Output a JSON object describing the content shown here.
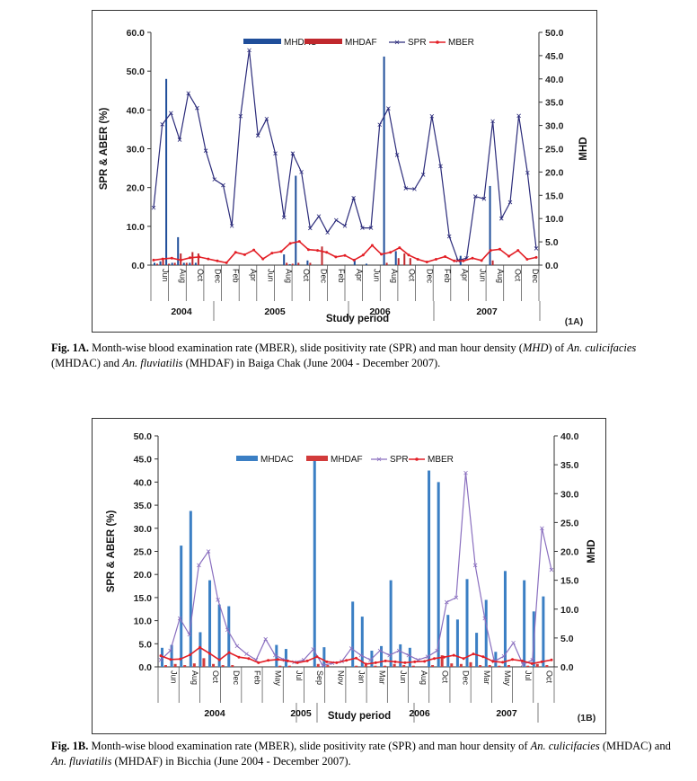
{
  "chart_data": [
    {
      "type": "bar",
      "panel_tag": "(1A)",
      "xlabel": "Study period",
      "ylabel": "SPR & ABER (%)",
      "ylabel_right": "MHD",
      "ylim": [
        0,
        60
      ],
      "ylim_right": [
        0,
        50
      ],
      "y_ticks": [
        "0.0",
        "10.0",
        "20.0",
        "30.0",
        "40.0",
        "50.0",
        "60.0"
      ],
      "y_ticks_right": [
        "0.0",
        "5.0",
        "10.0",
        "15.0",
        "20.0",
        "25.0",
        "30.0",
        "35.0",
        "40.0",
        "45.0",
        "50.0"
      ],
      "month_labels": [
        "Jun",
        "Aug",
        "Oct",
        "Dec",
        "Feb",
        "Apr",
        "Jun",
        "Aug",
        "Oct",
        "Dec",
        "Feb",
        "Apr",
        "Jun",
        "Aug",
        "Oct",
        "Dec",
        "Feb",
        "Apr",
        "Jun",
        "Aug",
        "Oct",
        "Dec"
      ],
      "years": [
        "2004",
        "2005",
        "2006",
        "2007"
      ],
      "legend": [
        "MHDAC",
        "MHDAF",
        "SPR",
        "MBER"
      ],
      "colors": {
        "MHDAC": "#1f4e9a",
        "MHDAF": "#c0282d",
        "SPR": "#2b2b7a",
        "MBER": "#e31f26"
      },
      "series": [
        {
          "name": "MHDAC",
          "axis": "right",
          "values": [
            0.5,
            0.8,
            40,
            0.5,
            6,
            0.5,
            0.5,
            0.5,
            0,
            0,
            0,
            0,
            0,
            0,
            0,
            0,
            0,
            0,
            0,
            0,
            0,
            0,
            2.3,
            0.2,
            19.2,
            0,
            1,
            0,
            0,
            0,
            0,
            0,
            0,
            0,
            1.2,
            0,
            0.3,
            0,
            0,
            44.8,
            0,
            3,
            0,
            0,
            0,
            0,
            0,
            0,
            0,
            0,
            0,
            0,
            2,
            0,
            0,
            0,
            0,
            17,
            0,
            0,
            0,
            0,
            0,
            0,
            0
          ]
        },
        {
          "name": "MHDAF",
          "axis": "right",
          "values": [
            0.3,
            1.2,
            0.3,
            0.5,
            2.5,
            0.5,
            2.8,
            2.5,
            0,
            0,
            0,
            0,
            0,
            0,
            0,
            0,
            0,
            0,
            0,
            0,
            0,
            0,
            0.5,
            0.3,
            0.5,
            0,
            0.5,
            0,
            4,
            0,
            0,
            0,
            0,
            0,
            0,
            0,
            0,
            0,
            0,
            0.5,
            0,
            1.5,
            2.5,
            1.5,
            0,
            0,
            0,
            0,
            0,
            0,
            0,
            0,
            0,
            0,
            0,
            0,
            0,
            1,
            0,
            0,
            0,
            0,
            0,
            0,
            0
          ]
        },
        {
          "name": "SPR",
          "axis": "left",
          "values": [
            14.8,
            36.3,
            39.2,
            32.3,
            44.3,
            40.5,
            29.5,
            22.1,
            20.6,
            10.1,
            38.4,
            55.4,
            33.4,
            37.7,
            28.8,
            12.3,
            28.8,
            24,
            9.5,
            12.6,
            8.4,
            11.6,
            10.1,
            17.3,
            9.6,
            9.6,
            36.2,
            40.4,
            28.4,
            19.8,
            19.6,
            23.3,
            38.4,
            25.5,
            7.4,
            1.2,
            1.8,
            17.7,
            17.1,
            37.1,
            12,
            16.2,
            38.5,
            23.8,
            4.3
          ]
        },
        {
          "name": "MBER",
          "axis": "left",
          "values": [
            1.3,
            1.6,
            1.8,
            1.3,
            1.9,
            2.1,
            1.6,
            1.1,
            0.6,
            3.3,
            2.7,
            3.9,
            1.6,
            3.1,
            3.5,
            5.6,
            6.1,
            4,
            3.8,
            3.3,
            2.1,
            2.5,
            1.3,
            2.6,
            5.1,
            2.8,
            3.3,
            4.5,
            2.6,
            1.5,
            0.8,
            1.5,
            2.2,
            1.1,
            1.1,
            1.8,
            1.2,
            3.8,
            4.1,
            2.3,
            3.8,
            1.5,
            2
          ]
        }
      ]
    },
    {
      "type": "bar",
      "panel_tag": "(1B)",
      "xlabel": "Study period",
      "ylabel": "SPR & ABER (%)",
      "ylabel_right": "MHD",
      "ylim": [
        0,
        50
      ],
      "ylim_right": [
        0,
        40
      ],
      "y_ticks": [
        "0.0",
        "5.0",
        "10.0",
        "15.0",
        "20.0",
        "25.0",
        "30.0",
        "35.0",
        "40.0",
        "45.0",
        "50.0"
      ],
      "y_ticks_right": [
        "0.0",
        "5.0",
        "10.0",
        "15.0",
        "20.0",
        "25.0",
        "30.0",
        "35.0",
        "40.0"
      ],
      "month_labels": [
        "Jun",
        "Aug",
        "Oct",
        "Dec",
        "Feb",
        "May",
        "Jul",
        "Sep",
        "Nov",
        "Jan",
        "Mar",
        "Jun",
        "Aug",
        "Oct",
        "Dec",
        "Mar",
        "May",
        "Jul",
        "Oct"
      ],
      "years": [
        "2004",
        "2005",
        "2006",
        "2007"
      ],
      "legend": [
        "MHDAC",
        "MHDAF",
        "SPR",
        "MBER"
      ],
      "colors": {
        "MHDAC": "#3b7fc4",
        "MHDAF": "#d23b3b",
        "SPR": "#8a6fbf",
        "MBER": "#e31f26"
      },
      "series": [
        {
          "name": "MHDAC",
          "axis": "right",
          "values": [
            3.3,
            3.8,
            21,
            27,
            6,
            15,
            10.8,
            10.5,
            0,
            0,
            0,
            0,
            3.8,
            3.1,
            0,
            0,
            36,
            3.4,
            0,
            0,
            11.3,
            8.7,
            2.8,
            3.6,
            15,
            3.9,
            3.3,
            0,
            34,
            32,
            9,
            8.2,
            15.2,
            5.9,
            11.6,
            2.6,
            16.6,
            0,
            15,
            9.6,
            12.2
          ]
        },
        {
          "name": "MHDAF",
          "axis": "right",
          "values": [
            0.3,
            0.5,
            0.3,
            0.6,
            1.5,
            0.5,
            0.3,
            0.3,
            0,
            0,
            0,
            0,
            0.2,
            0.2,
            0,
            0,
            0.5,
            0.3,
            0,
            0,
            0.2,
            0.3,
            0.2,
            0.2,
            0.5,
            0.3,
            0.2,
            0,
            0.3,
            2,
            0.6,
            0.5,
            0.8,
            0.3,
            0.3,
            0.2,
            0.3,
            0,
            0.2,
            0.5,
            0.3
          ]
        },
        {
          "name": "SPR",
          "axis": "left",
          "values": [
            1.5,
            3.5,
            10.5,
            7,
            22,
            25,
            14.5,
            8,
            4.5,
            2.8,
            1.5,
            6,
            2.5,
            1.5,
            1,
            1.5,
            3.8,
            0.3,
            0.8,
            1.2,
            4,
            2.5,
            1.5,
            3.5,
            2.5,
            3.5,
            2.5,
            1.5,
            2.2,
            3.5,
            14,
            15,
            42,
            22,
            10.5,
            1.2,
            2.3,
            5.2,
            0.5,
            1.5,
            30,
            21
          ]
        },
        {
          "name": "MBER",
          "axis": "left",
          "values": [
            2.4,
            1.6,
            1.7,
            2.6,
            4.2,
            2.9,
            1.5,
            3.1,
            2.1,
            1.8,
            0.9,
            1.4,
            1.6,
            1.3,
            0.9,
            1.3,
            2.2,
            1.1,
            0.9,
            1.4,
            1.9,
            0.6,
            0.9,
            1.3,
            1.1,
            0.9,
            1.1,
            1.2,
            1.8,
            2.1,
            2.5,
            1.8,
            2.8,
            2.2,
            1.2,
            1,
            1.6,
            1.3,
            0.7,
            1.1,
            1.5
          ]
        }
      ]
    }
  ],
  "captions": {
    "a": {
      "label": "Fig. 1A.",
      "t1": " Month-wise blood examination rate (MBER), slide positivity rate (SPR) and man hour density (",
      "i1": "MHD",
      "t2": ") of ",
      "i2": "An. culicifacies",
      "t3": " (MHDAC) and ",
      "i3": "An. fluviatilis",
      "t4": " (MHDAF) in Baiga Chak (June 2004 - December 2007)."
    },
    "b": {
      "label": "Fig. 1B.",
      "t1": " Month-wise blood examination rate (MBER), slide positivity rate (SPR) and man hour density of ",
      "i1": "An. culicifacies",
      "t2": " (MHDAC) and ",
      "i2": "An. fluviatilis",
      "t3": " (MHDAF) in Bicchia (June 2004 - December 2007)."
    }
  }
}
